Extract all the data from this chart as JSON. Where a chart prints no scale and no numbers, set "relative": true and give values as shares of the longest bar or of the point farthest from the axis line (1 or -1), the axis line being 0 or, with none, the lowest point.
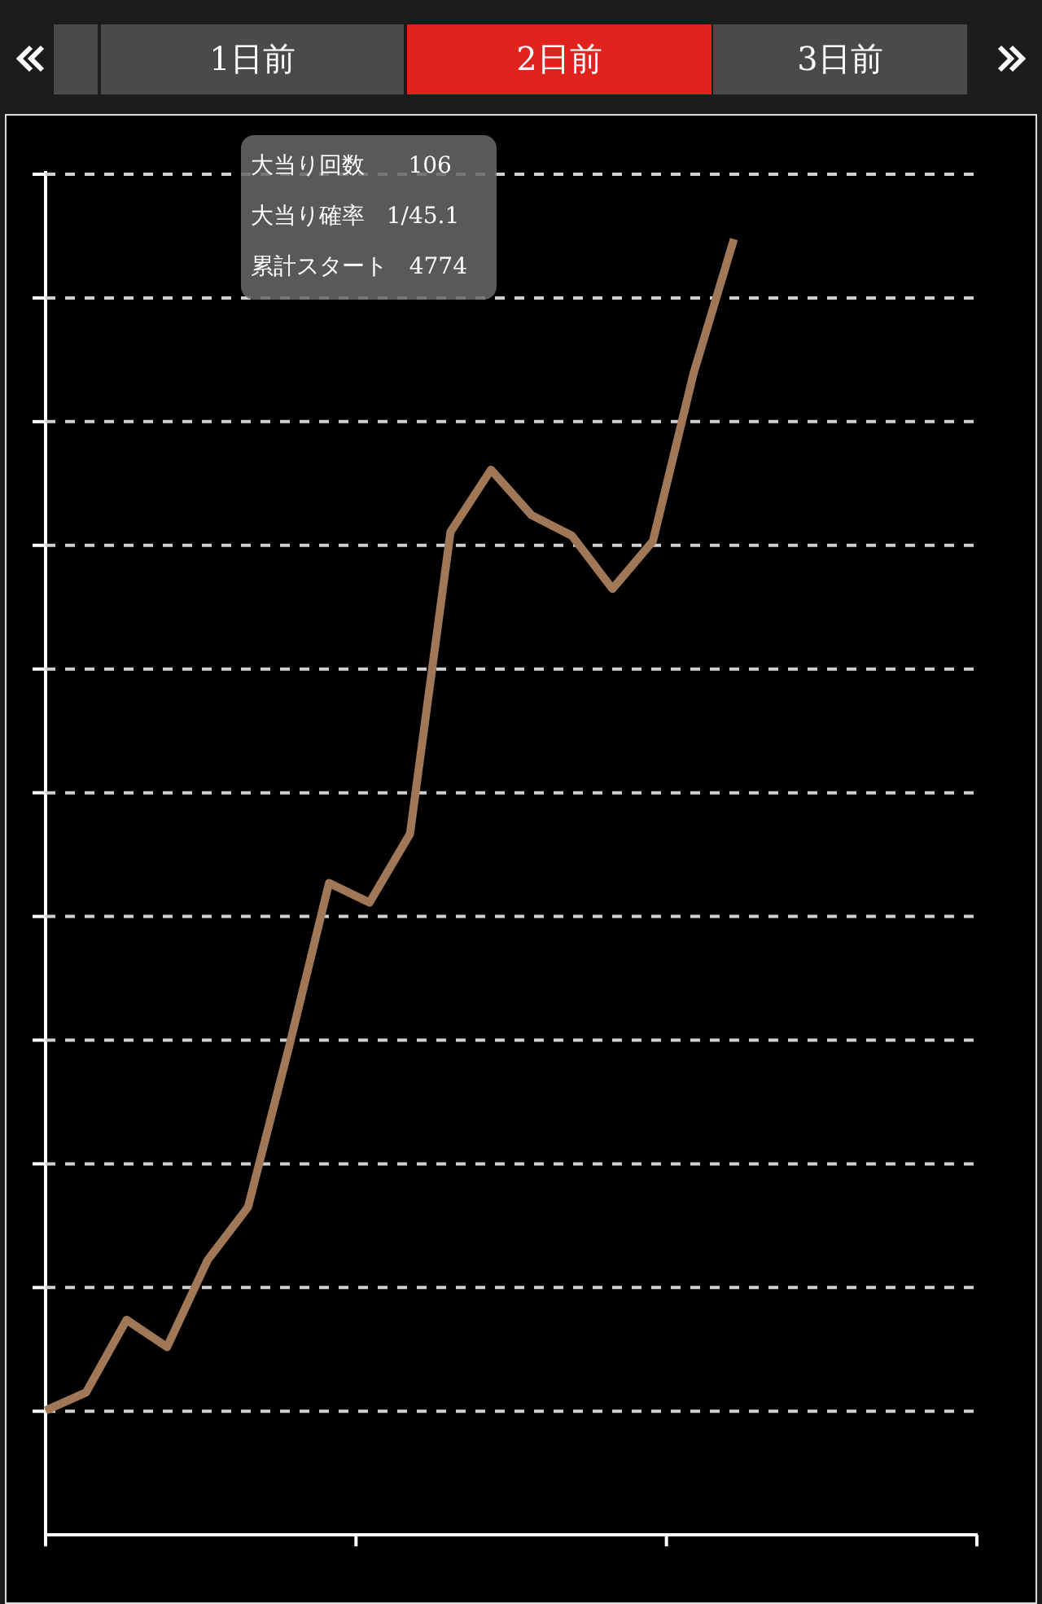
{
  "chart_data": {
    "type": "line",
    "relative": true,
    "categories": [
      null,
      null,
      null,
      null,
      null,
      null,
      null,
      null,
      null,
      null,
      null,
      null,
      null,
      null,
      null,
      null,
      null,
      null,
      null,
      null,
      null,
      null,
      null,
      null
    ],
    "series": [
      {
        "color": "#a07858",
        "values": [
          0.096,
          0.11,
          0.166,
          0.145,
          0.212,
          0.253,
          0.375,
          0.503,
          0.488,
          0.541,
          0.774,
          0.822,
          0.787,
          0.771,
          0.73,
          0.767,
          0.896,
          1,
          null,
          null,
          null,
          null,
          null,
          null
        ]
      }
    ],
    "grid": "y",
    "marker": "none",
    "line_style": "solid",
    "legend": false,
    "annotations": [
      "1日前",
      "2日前",
      "3日前",
      "大当り回数      106",
      "大当り確率   1/45.1",
      "累計スタート   4774"
    ]
  }
}
